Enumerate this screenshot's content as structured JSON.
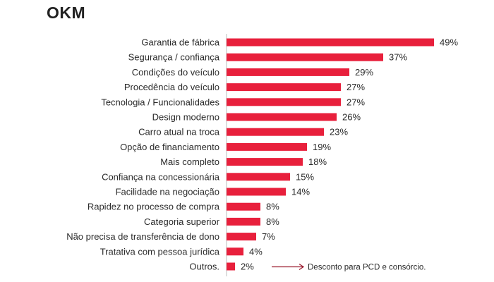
{
  "chart_data": {
    "type": "bar",
    "orientation": "horizontal",
    "title": "OKM",
    "bar_color": "#e8203c",
    "categories": [
      "Garantia de fábrica",
      "Segurança / confiança",
      "Condições do veículo",
      "Procedência do veículo",
      "Tecnologia / Funcionalidades",
      "Design moderno",
      "Carro atual na troca",
      "Opção de financiamento",
      "Mais completo",
      "Confiança na concessionária",
      "Facilidade na negociação",
      "Rapidez no processo de compra",
      "Categoria superior",
      "Não precisa de transferência de dono",
      "Tratativa com pessoa jurídica",
      "Outros."
    ],
    "values": [
      49,
      37,
      29,
      27,
      27,
      26,
      23,
      19,
      18,
      15,
      14,
      8,
      8,
      7,
      4,
      2
    ],
    "value_labels": [
      "49%",
      "37%",
      "29%",
      "27%",
      "27%",
      "26%",
      "23%",
      "19%",
      "18%",
      "15%",
      "14%",
      "8%",
      "8%",
      "7%",
      "4%",
      "2%"
    ],
    "xlim": [
      0,
      49
    ],
    "annotation": {
      "target_category": "Outros.",
      "text": "Desconto para PCD e consórcio."
    }
  }
}
